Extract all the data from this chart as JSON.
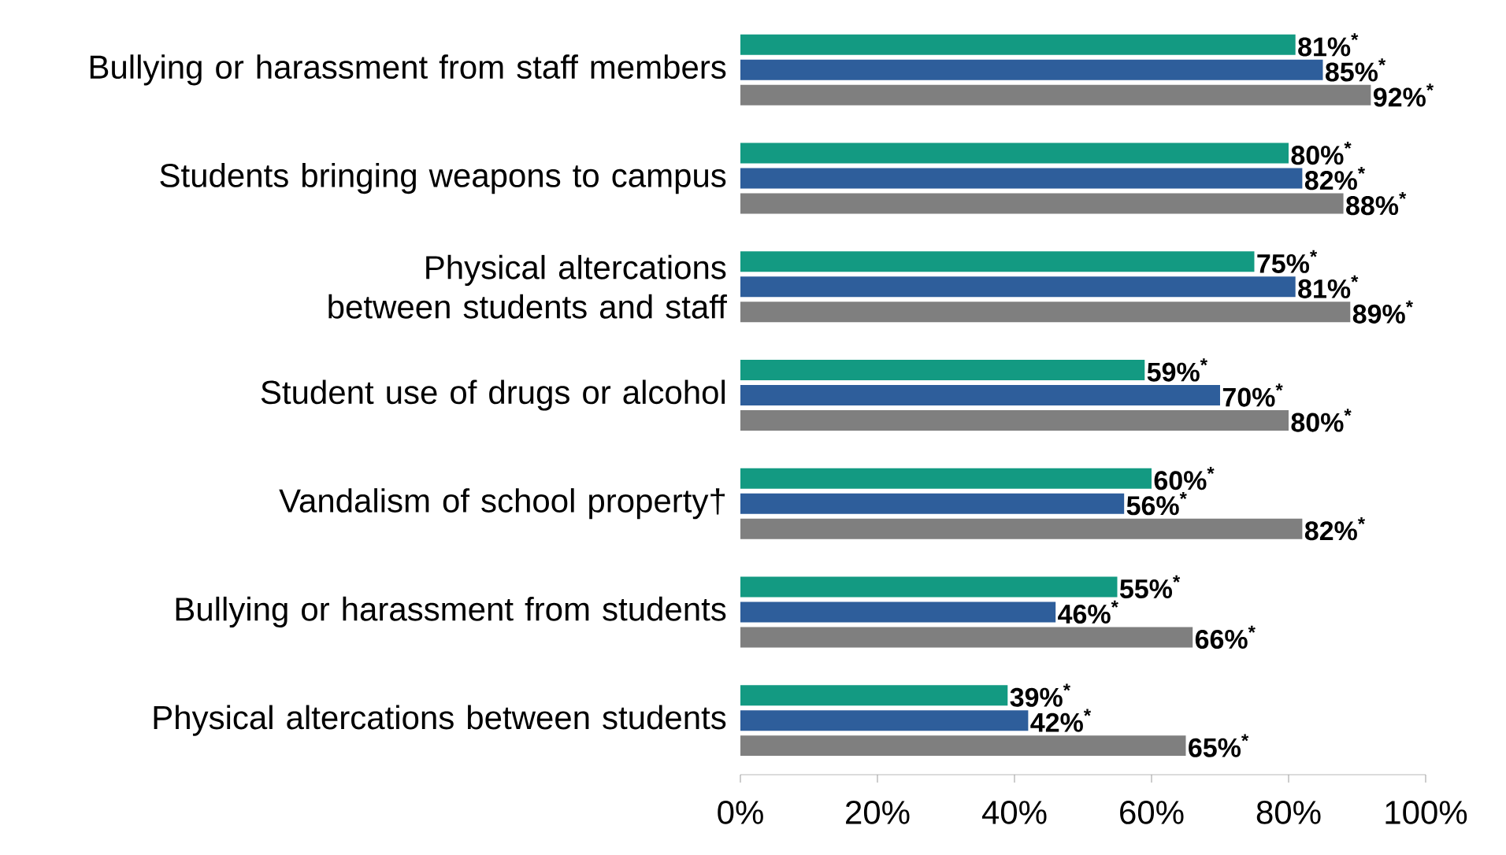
{
  "chart_data": {
    "type": "bar",
    "orientation": "horizontal",
    "categories": [
      "Bullying or harassment from staff members",
      "Students bringing weapons to campus",
      "Physical altercations between students and staff",
      "Student use of drugs or alcohol",
      "Vandalism of school property†",
      "Bullying or harassment from students",
      "Physical altercations between students"
    ],
    "series": [
      {
        "color": "#139a82",
        "values": [
          81,
          80,
          75,
          59,
          60,
          55,
          39
        ],
        "value_labels": [
          "81%$^{*}$",
          "80%$^{*}$",
          "75%$^{*}$",
          "59%$^{*}$",
          "60%$^{*}$",
          "55%$^{*}$",
          "39%$^{*}$"
        ]
      },
      {
        "color": "#2e5e9b",
        "values": [
          85,
          82,
          81,
          70,
          56,
          46,
          42
        ],
        "value_labels": [
          "85%$^{*}$",
          "82%$^{*}$",
          "81%$^{*}$",
          "70%$^{*}$",
          "56%$^{*}$",
          "46%$^{*}$",
          "42%$^{*}$"
        ]
      },
      {
        "color": "#7f7f7f",
        "values": [
          92,
          88,
          89,
          80,
          82,
          66,
          65
        ],
        "value_labels": [
          "92%$^{*}$",
          "88%$^{*}$",
          "89%$^{*}$",
          "80%$^{*}$",
          "82%$^{*}$",
          "66%$^{*}$",
          "65%$^{*}$"
        ]
      }
    ],
    "xlim": [
      0,
      100
    ],
    "xticks": [
      {
        "value": 0,
        "label": "0%"
      },
      {
        "value": 20,
        "label": "20%"
      },
      {
        "value": 40,
        "label": "40%"
      },
      {
        "value": 60,
        "label": "60%"
      },
      {
        "value": 80,
        "label": "80%"
      },
      {
        "value": 100,
        "label": "100%"
      }
    ],
    "grid": false
  }
}
